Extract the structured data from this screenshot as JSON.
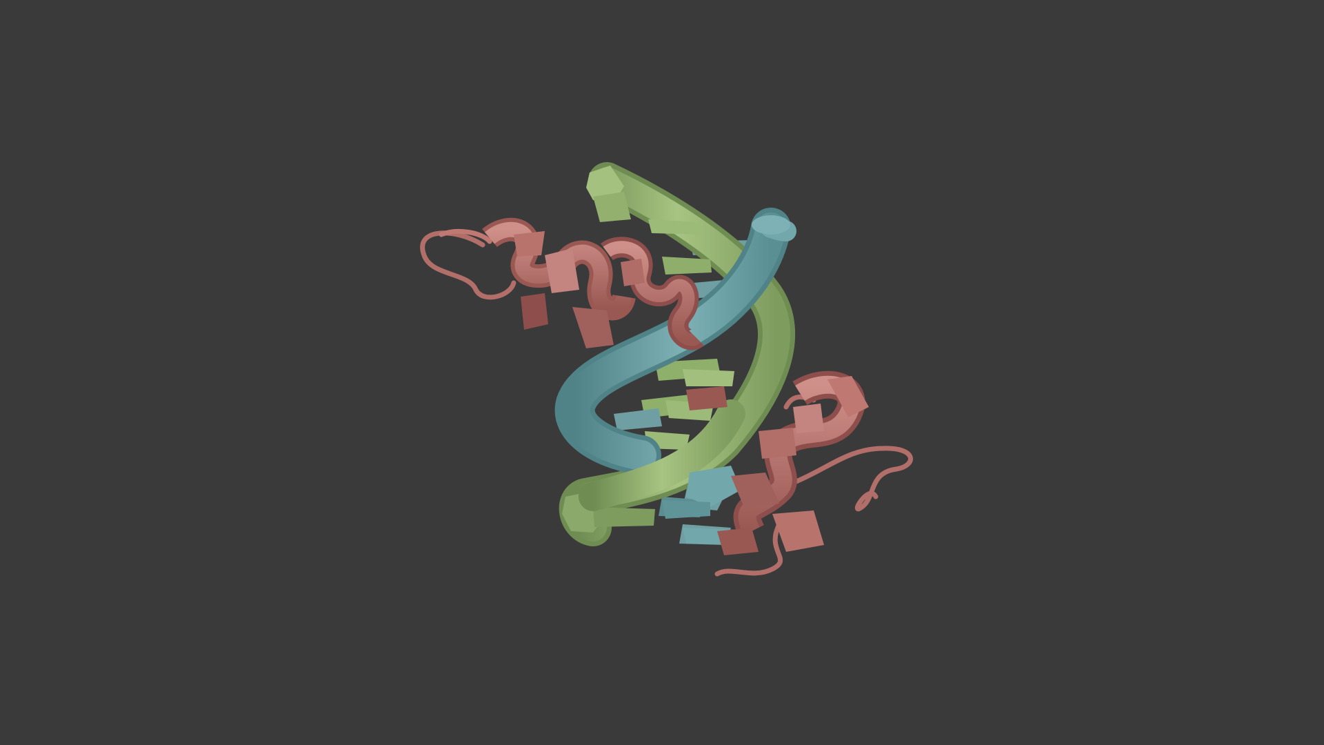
{
  "scene": {
    "background_color": "#3a3a3a",
    "subject": "protein-dna-complex",
    "colors": {
      "protein": "#c07872",
      "protein_shadow": "#8e4f4c",
      "protein_highlight": "#d89a93",
      "dna_strand_a": "#72a7ab",
      "dna_strand_a_shadow": "#4f8387",
      "dna_strand_b": "#9dbb78",
      "dna_strand_b_shadow": "#6f8d52"
    }
  }
}
